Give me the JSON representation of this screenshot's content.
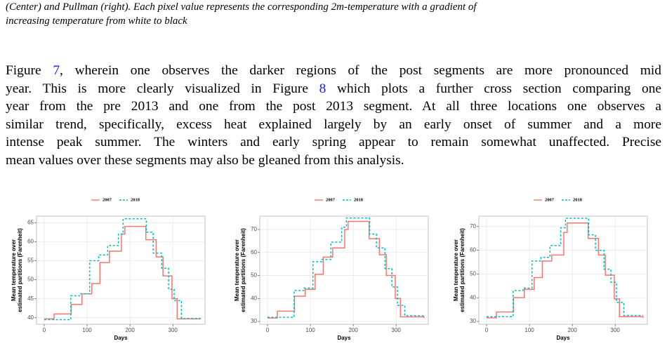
{
  "caption": {
    "lines": [
      "(Center) and Pullman (right). Each pixel value represents the corresponding 2m-temperature with a gradient of",
      "increasing temperature from white to black"
    ]
  },
  "paragraph": {
    "lines": [
      [
        "Figure ",
        "7",
        ", wherein one observes the darker regions of the post segments are more pronounced mid"
      ],
      [
        "year. This is more clearly visualized in Figure ",
        "8",
        " which plots a further cross section comparing one"
      ],
      [
        "year from the pre 2013 and one from the post 2013 segment. At all three locations one observes a"
      ],
      [
        "similar trend, specifically, excess heat explained largely by an early onset of summer and a more"
      ],
      [
        "intense peak summer. The winters and early spring appear to remain somewhat unaffected. Precise"
      ],
      [
        "mean values over these segments may also be gleaned from this analysis."
      ]
    ]
  },
  "chart_data": [
    {
      "type": "line",
      "step": "post",
      "legend": "top",
      "grid": true,
      "xlabel": "Days",
      "ylabel": [
        "Mean temperature over",
        "estimated partitions (Farenheit)"
      ],
      "xlim": [
        -18,
        375
      ],
      "xticks": [
        0,
        100,
        200,
        300
      ],
      "ylim": [
        38.3,
        66.7
      ],
      "yticks": [
        40,
        45,
        50,
        55,
        60,
        65
      ],
      "series": [
        {
          "name": "2007",
          "color": "#F8766D",
          "dash": false,
          "x": [
            0,
            23,
            63,
            88,
            111,
            130,
            152,
            180,
            188,
            237,
            261,
            277,
            298,
            310,
            365
          ],
          "values": [
            39.7,
            41,
            43.5,
            46.3,
            49,
            54.5,
            57.5,
            62,
            64,
            60.5,
            56,
            51,
            45,
            39.7,
            39.7
          ]
        },
        {
          "name": "2018",
          "color": "#00BFC4",
          "dash": true,
          "x": [
            0,
            62,
            85,
            106,
            127,
            148,
            173,
            184,
            238,
            254,
            274,
            290,
            303,
            320,
            365
          ],
          "values": [
            39.5,
            45.8,
            46.3,
            55,
            56.5,
            59,
            62,
            66,
            62.5,
            57,
            53,
            47.5,
            44.5,
            39.8,
            39.8
          ]
        }
      ]
    },
    {
      "type": "line",
      "step": "post",
      "legend": "top",
      "grid": true,
      "xlabel": "Days",
      "ylabel": [
        "Mean temperature over",
        "estimated partitions (Farenheit)"
      ],
      "xlim": [
        -18,
        375
      ],
      "xticks": [
        0,
        100,
        200,
        300
      ],
      "ylim": [
        28.8,
        75.8
      ],
      "yticks": [
        30,
        40,
        50,
        60,
        70
      ],
      "series": [
        {
          "name": "2007",
          "color": "#F8766D",
          "dash": false,
          "x": [
            0,
            23,
            63,
            88,
            111,
            130,
            152,
            180,
            188,
            237,
            261,
            277,
            298,
            310,
            365
          ],
          "values": [
            31.5,
            34.5,
            41,
            44,
            50.5,
            58,
            62,
            70,
            73.5,
            66,
            59,
            50,
            40,
            32,
            31.5
          ]
        },
        {
          "name": "2018",
          "color": "#00BFC4",
          "dash": true,
          "x": [
            0,
            62,
            85,
            106,
            127,
            148,
            173,
            184,
            238,
            254,
            274,
            290,
            303,
            320,
            365
          ],
          "values": [
            31.8,
            43.5,
            44.5,
            56,
            57,
            64.5,
            71,
            75,
            68,
            62,
            53,
            45,
            37,
            32.5,
            32.5
          ]
        }
      ]
    },
    {
      "type": "line",
      "step": "post",
      "legend": "top",
      "grid": true,
      "xlabel": "Days",
      "ylabel": [
        "Mean temperature over",
        "estimated partitions (Farenheit)"
      ],
      "xlim": [
        -18,
        375
      ],
      "xticks": [
        0,
        100,
        200,
        300
      ],
      "ylim": [
        28.8,
        74.4
      ],
      "yticks": [
        30,
        40,
        50,
        60,
        70
      ],
      "series": [
        {
          "name": "2007",
          "color": "#F8766D",
          "dash": false,
          "x": [
            0,
            23,
            63,
            88,
            111,
            130,
            152,
            180,
            188,
            237,
            261,
            277,
            298,
            310,
            365
          ],
          "values": [
            31.5,
            34,
            40,
            43.5,
            48.5,
            55.5,
            58,
            67.5,
            71.5,
            65,
            58,
            49.5,
            39.5,
            32,
            31.5
          ]
        },
        {
          "name": "2018",
          "color": "#00BFC4",
          "dash": true,
          "x": [
            0,
            62,
            85,
            106,
            127,
            148,
            173,
            184,
            238,
            254,
            274,
            290,
            303,
            320,
            365
          ],
          "values": [
            32,
            43,
            44,
            55.5,
            57,
            62,
            69.5,
            73.5,
            66.5,
            60,
            52,
            46.5,
            38,
            32.5,
            32.5
          ]
        }
      ]
    }
  ]
}
